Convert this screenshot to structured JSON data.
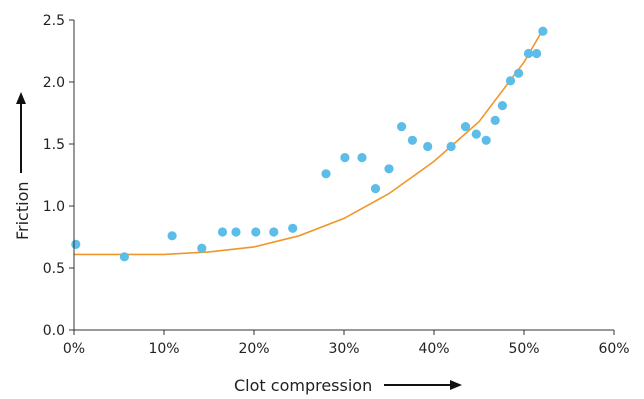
{
  "chart_data": {
    "type": "scatter",
    "xlabel": "Clot compression",
    "ylabel": "Friction",
    "xlim": [
      0,
      60
    ],
    "ylim": [
      0,
      2.5
    ],
    "x_ticks": [
      "0%",
      "10%",
      "20%",
      "30%",
      "40%",
      "50%",
      "60%"
    ],
    "y_ticks": [
      "0.0",
      "0.5",
      "1.0",
      "1.5",
      "2.0",
      "2.5"
    ],
    "grid": false,
    "point_color": "#5bbde8",
    "trend_color": "#f0962a",
    "points": [
      {
        "x": 0.2,
        "y": 0.69
      },
      {
        "x": 5.6,
        "y": 0.59
      },
      {
        "x": 10.9,
        "y": 0.76
      },
      {
        "x": 14.2,
        "y": 0.66
      },
      {
        "x": 16.5,
        "y": 0.79
      },
      {
        "x": 18.0,
        "y": 0.79
      },
      {
        "x": 20.2,
        "y": 0.79
      },
      {
        "x": 22.2,
        "y": 0.79
      },
      {
        "x": 24.3,
        "y": 0.82
      },
      {
        "x": 28.0,
        "y": 1.26
      },
      {
        "x": 30.1,
        "y": 1.39
      },
      {
        "x": 32.0,
        "y": 1.39
      },
      {
        "x": 33.5,
        "y": 1.14
      },
      {
        "x": 35.0,
        "y": 1.3
      },
      {
        "x": 36.4,
        "y": 1.64
      },
      {
        "x": 37.6,
        "y": 1.53
      },
      {
        "x": 39.3,
        "y": 1.48
      },
      {
        "x": 41.9,
        "y": 1.48
      },
      {
        "x": 43.5,
        "y": 1.64
      },
      {
        "x": 44.7,
        "y": 1.58
      },
      {
        "x": 45.8,
        "y": 1.53
      },
      {
        "x": 46.8,
        "y": 1.69
      },
      {
        "x": 47.6,
        "y": 1.81
      },
      {
        "x": 48.5,
        "y": 2.01
      },
      {
        "x": 49.4,
        "y": 2.07
      },
      {
        "x": 50.5,
        "y": 2.23
      },
      {
        "x": 51.4,
        "y": 2.23
      },
      {
        "x": 52.1,
        "y": 2.41
      }
    ],
    "trend": {
      "x": [
        0,
        5,
        10,
        15,
        20,
        25,
        30,
        35,
        40,
        45,
        50,
        52
      ],
      "y": [
        0.61,
        0.61,
        0.61,
        0.63,
        0.67,
        0.76,
        0.9,
        1.1,
        1.36,
        1.68,
        2.16,
        2.41
      ]
    }
  }
}
